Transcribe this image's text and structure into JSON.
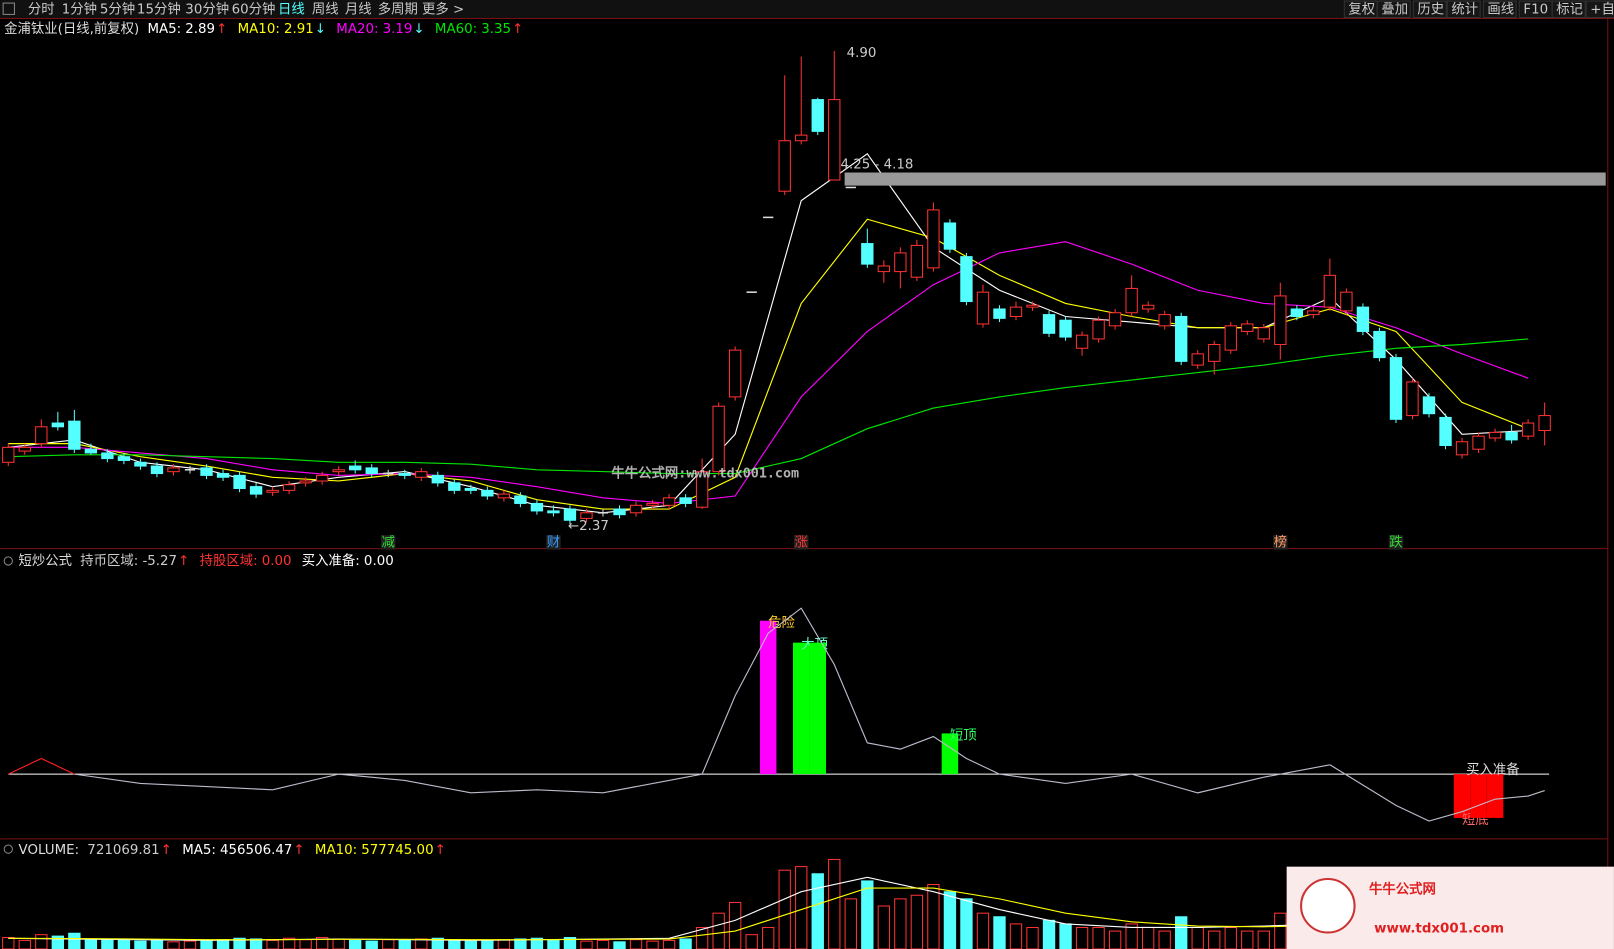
{
  "toolbar": {
    "left": [
      "分时",
      "1分钟",
      "5分钟",
      "15分钟",
      "30分钟",
      "60分钟",
      "日线",
      "周线",
      "月线",
      "多周期",
      "更多 >"
    ],
    "right": [
      "复权",
      "叠加",
      "历史",
      "统计",
      "画线",
      "F10",
      "标记",
      "+自选"
    ]
  },
  "watermark": "牛牛公式网:www.tdx001.com",
  "logo": {
    "title": "牛牛公式网",
    "url": "www.tdx001.com"
  },
  "chart_data": [
    {
      "type": "candlestick",
      "title": "金浦钛业(日线,前复权)",
      "legend": [
        {
          "name": "MA5:",
          "value": 2.89,
          "arrow": "↑",
          "color": "#ffffff"
        },
        {
          "name": "MA10:",
          "value": 2.91,
          "arrow": "↓",
          "color": "#ffff00"
        },
        {
          "name": "MA20:",
          "value": 3.19,
          "arrow": "↓",
          "color": "#ff00ff"
        },
        {
          "name": "MA60:",
          "value": 3.35,
          "arrow": "↑",
          "color": "#00e600"
        }
      ],
      "ylim": [
        2.31,
        4.98
      ],
      "up_color": "#ff3232",
      "down_color": "#54ffff",
      "candles": [
        [
          2.7,
          2.8,
          2.68,
          2.78
        ],
        [
          2.76,
          2.8,
          2.74,
          2.78
        ],
        [
          2.8,
          2.93,
          2.78,
          2.89
        ],
        [
          2.91,
          2.97,
          2.87,
          2.89
        ],
        [
          2.92,
          2.98,
          2.75,
          2.77
        ],
        [
          2.77,
          2.8,
          2.74,
          2.75
        ],
        [
          2.75,
          2.77,
          2.7,
          2.72
        ],
        [
          2.73,
          2.75,
          2.69,
          2.71
        ],
        [
          2.7,
          2.72,
          2.66,
          2.68
        ],
        [
          2.68,
          2.7,
          2.62,
          2.64
        ],
        [
          2.65,
          2.69,
          2.63,
          2.67
        ],
        [
          2.66,
          2.68,
          2.64,
          2.66
        ],
        [
          2.67,
          2.69,
          2.61,
          2.63
        ],
        [
          2.64,
          2.66,
          2.6,
          2.62
        ],
        [
          2.63,
          2.65,
          2.54,
          2.56
        ],
        [
          2.57,
          2.59,
          2.51,
          2.53
        ],
        [
          2.54,
          2.57,
          2.52,
          2.55
        ],
        [
          2.55,
          2.6,
          2.53,
          2.58
        ],
        [
          2.59,
          2.62,
          2.57,
          2.6
        ],
        [
          2.6,
          2.65,
          2.58,
          2.63
        ],
        [
          2.65,
          2.68,
          2.63,
          2.66
        ],
        [
          2.68,
          2.71,
          2.64,
          2.66
        ],
        [
          2.67,
          2.69,
          2.62,
          2.64
        ],
        [
          2.64,
          2.66,
          2.62,
          2.64
        ],
        [
          2.64,
          2.66,
          2.61,
          2.63
        ],
        [
          2.62,
          2.67,
          2.6,
          2.65
        ],
        [
          2.63,
          2.65,
          2.57,
          2.59
        ],
        [
          2.59,
          2.61,
          2.53,
          2.55
        ],
        [
          2.56,
          2.58,
          2.53,
          2.55
        ],
        [
          2.55,
          2.57,
          2.5,
          2.52
        ],
        [
          2.51,
          2.55,
          2.49,
          2.53
        ],
        [
          2.52,
          2.54,
          2.46,
          2.48
        ],
        [
          2.48,
          2.5,
          2.42,
          2.44
        ],
        [
          2.44,
          2.47,
          2.41,
          2.43
        ],
        [
          2.45,
          2.47,
          2.37,
          2.39
        ],
        [
          2.4,
          2.45,
          2.38,
          2.43
        ],
        [
          2.43,
          2.45,
          2.41,
          2.43
        ],
        [
          2.45,
          2.47,
          2.4,
          2.42
        ],
        [
          2.43,
          2.49,
          2.41,
          2.47
        ],
        [
          2.47,
          2.5,
          2.45,
          2.48
        ],
        [
          2.47,
          2.53,
          2.45,
          2.51
        ],
        [
          2.51,
          2.53,
          2.46,
          2.48
        ],
        [
          2.46,
          2.72,
          2.45,
          2.65
        ],
        [
          2.65,
          3.02,
          2.63,
          3.0
        ],
        [
          3.05,
          3.32,
          3.03,
          3.3
        ],
        [
          3.61,
          3.61,
          3.61,
          3.61
        ],
        [
          4.01,
          4.01,
          4.01,
          4.01
        ],
        [
          4.15,
          4.77,
          4.13,
          4.42
        ],
        [
          4.42,
          4.87,
          4.4,
          4.45
        ],
        [
          4.64,
          4.65,
          4.45,
          4.47
        ],
        [
          4.21,
          4.9,
          4.21,
          4.64
        ],
        [
          4.17,
          4.17,
          4.17,
          4.17
        ],
        [
          3.87,
          3.95,
          3.74,
          3.76
        ],
        [
          3.72,
          3.78,
          3.66,
          3.75
        ],
        [
          3.72,
          3.85,
          3.63,
          3.82
        ],
        [
          3.69,
          3.89,
          3.67,
          3.86
        ],
        [
          3.74,
          4.09,
          3.72,
          4.05
        ],
        [
          3.98,
          4.0,
          3.82,
          3.84
        ],
        [
          3.8,
          3.82,
          3.54,
          3.56
        ],
        [
          3.44,
          3.65,
          3.42,
          3.61
        ],
        [
          3.52,
          3.54,
          3.45,
          3.47
        ],
        [
          3.48,
          3.56,
          3.46,
          3.53
        ],
        [
          3.53,
          3.56,
          3.51,
          3.54
        ],
        [
          3.49,
          3.51,
          3.37,
          3.39
        ],
        [
          3.46,
          3.48,
          3.35,
          3.37
        ],
        [
          3.31,
          3.4,
          3.27,
          3.38
        ],
        [
          3.36,
          3.48,
          3.34,
          3.46
        ],
        [
          3.43,
          3.52,
          3.41,
          3.5
        ],
        [
          3.5,
          3.7,
          3.48,
          3.63
        ],
        [
          3.52,
          3.56,
          3.5,
          3.54
        ],
        [
          3.43,
          3.51,
          3.41,
          3.49
        ],
        [
          3.48,
          3.5,
          3.22,
          3.24
        ],
        [
          3.22,
          3.3,
          3.2,
          3.28
        ],
        [
          3.24,
          3.35,
          3.17,
          3.33
        ],
        [
          3.3,
          3.45,
          3.28,
          3.43
        ],
        [
          3.4,
          3.46,
          3.38,
          3.44
        ],
        [
          3.36,
          3.44,
          3.34,
          3.42
        ],
        [
          3.33,
          3.66,
          3.25,
          3.59
        ],
        [
          3.52,
          3.54,
          3.46,
          3.48
        ],
        [
          3.49,
          3.53,
          3.47,
          3.51
        ],
        [
          3.53,
          3.79,
          3.51,
          3.7
        ],
        [
          3.51,
          3.63,
          3.49,
          3.61
        ],
        [
          3.53,
          3.55,
          3.38,
          3.4
        ],
        [
          3.4,
          3.42,
          3.24,
          3.26
        ],
        [
          3.26,
          3.28,
          2.91,
          2.93
        ],
        [
          2.95,
          3.15,
          2.93,
          3.13
        ],
        [
          3.05,
          3.07,
          2.94,
          2.96
        ],
        [
          2.94,
          2.96,
          2.77,
          2.79
        ],
        [
          2.74,
          2.83,
          2.72,
          2.81
        ],
        [
          2.77,
          2.86,
          2.75,
          2.84
        ],
        [
          2.83,
          2.88,
          2.81,
          2.86
        ],
        [
          2.86,
          2.9,
          2.8,
          2.82
        ],
        [
          2.84,
          2.93,
          2.82,
          2.91
        ],
        [
          2.87,
          3.02,
          2.79,
          2.95
        ]
      ],
      "ma_x": [
        0,
        4,
        8,
        12,
        16,
        20,
        24,
        28,
        32,
        36,
        40,
        44,
        48,
        52,
        56,
        60,
        64,
        68,
        72,
        76,
        80,
        84,
        88,
        92
      ],
      "series": [
        {
          "name": "MA5",
          "color": "#ffffff",
          "values": [
            2.78,
            2.82,
            2.7,
            2.66,
            2.57,
            2.62,
            2.65,
            2.57,
            2.47,
            2.43,
            2.47,
            2.85,
            4.1,
            4.35,
            3.85,
            3.62,
            3.48,
            3.45,
            3.42,
            3.42,
            3.58,
            3.25,
            2.85,
            2.87
          ]
        },
        {
          "name": "MA10",
          "color": "#ffff00",
          "values": [
            2.8,
            2.8,
            2.73,
            2.68,
            2.62,
            2.6,
            2.64,
            2.6,
            2.5,
            2.45,
            2.45,
            2.62,
            3.55,
            4.0,
            3.9,
            3.7,
            3.55,
            3.48,
            3.42,
            3.42,
            3.52,
            3.4,
            3.02,
            2.88
          ]
        },
        {
          "name": "MA20",
          "color": "#ff00ff",
          "values": [
            2.78,
            2.78,
            2.75,
            2.72,
            2.66,
            2.63,
            2.64,
            2.62,
            2.57,
            2.51,
            2.48,
            2.52,
            3.05,
            3.4,
            3.65,
            3.82,
            3.88,
            3.76,
            3.62,
            3.55,
            3.53,
            3.42,
            3.28,
            3.15
          ]
        },
        {
          "name": "MA60",
          "color": "#00e600",
          "values": [
            2.73,
            2.74,
            2.74,
            2.73,
            2.72,
            2.7,
            2.7,
            2.69,
            2.66,
            2.65,
            2.64,
            2.64,
            2.72,
            2.88,
            2.99,
            3.05,
            3.1,
            3.14,
            3.18,
            3.22,
            3.27,
            3.31,
            3.33,
            3.36
          ]
        }
      ],
      "high_label": {
        "index": 50,
        "value": 4.9,
        "label": "4.90"
      },
      "low_label": {
        "index": 34,
        "value": 2.37,
        "label": "←2.37"
      },
      "gap": {
        "index": 51,
        "values": [
          4.25,
          4.18
        ],
        "label": "4.25 - 4.18"
      },
      "markers": [
        {
          "text": "减",
          "index": 23,
          "color": "#33dd33"
        },
        {
          "text": "财",
          "index": 33,
          "color": "#3399ff"
        },
        {
          "text": "涨",
          "index": 48,
          "color": "#ff3333"
        },
        {
          "text": "榜",
          "index": 77,
          "color": "#ff9966"
        },
        {
          "text": "跌",
          "index": 84,
          "color": "#33dd33"
        }
      ]
    },
    {
      "type": "indicator",
      "title": "短炒公式",
      "legend": [
        {
          "name": "持币区域:",
          "value": -5.27,
          "arrow": "↑",
          "color": "#cccccc"
        },
        {
          "name": "持股区域:",
          "value": 0,
          "label": "0.00",
          "color": "#ff3232"
        },
        {
          "name": "买入准备:",
          "value": 0,
          "label": "0.00",
          "color": "#ffffff"
        }
      ],
      "ylim": [
        -19.7,
        64.8
      ],
      "zero_line": 0,
      "x": [
        0,
        2,
        4,
        8,
        12,
        16,
        20,
        24,
        28,
        32,
        36,
        40,
        42,
        44,
        46,
        48,
        50,
        52,
        54,
        56,
        58,
        60,
        64,
        68,
        72,
        76,
        80,
        84,
        86,
        88,
        90,
        92,
        93
      ],
      "values": [
        0,
        5,
        0,
        -3,
        -4,
        -5,
        0,
        -2,
        -6,
        -5,
        -6,
        -2,
        0,
        25,
        45,
        53,
        35,
        10,
        8,
        12,
        5,
        0,
        -3,
        0,
        -6,
        -1,
        3,
        -10,
        -15,
        -12,
        -8,
        -7,
        -5.27
      ],
      "up_color": "#ff2020",
      "down_color": "#bbbbcc",
      "bars": [
        {
          "index": 46,
          "value": 49,
          "color": "#ff00ff",
          "label": "危险",
          "label_color": "#ffcc33"
        },
        {
          "index": 48,
          "value": 42,
          "color": "#00ff00",
          "label": "大顶",
          "label_color": "#66ffcc"
        },
        {
          "index": 49,
          "value": 42,
          "color": "#00ff00"
        },
        {
          "index": 57,
          "value": 13,
          "color": "#00ff00",
          "label": "短顶",
          "label_color": "#33ff66"
        },
        {
          "index": 88,
          "value": -14,
          "color": "#ff0000",
          "label": "短底",
          "label_color": "#ff6666"
        },
        {
          "index": 89,
          "value": -14,
          "color": "#ff0000"
        },
        {
          "index": 90,
          "value": -14,
          "color": "#ff0000"
        }
      ],
      "note": {
        "index": 88,
        "value": 0,
        "label": "买入准备"
      }
    },
    {
      "type": "volume",
      "title": "VOLUME:",
      "legend": [
        {
          "name": "",
          "value": 721069.81,
          "arrow": "↑",
          "color": "#cccccc"
        },
        {
          "name": "MA5:",
          "value": 456506.47,
          "arrow": "↑",
          "color": "#ffffff"
        },
        {
          "name": "MA10:",
          "value": 577745,
          "label": "577745.00",
          "arrow": "↑",
          "color": "#ffff00"
        }
      ],
      "ylim": [
        0,
        1250000
      ],
      "values": [
        160000,
        120000,
        200000,
        180000,
        220000,
        140000,
        130000,
        120000,
        110000,
        130000,
        100000,
        110000,
        120000,
        130000,
        150000,
        140000,
        120000,
        150000,
        130000,
        160000,
        140000,
        120000,
        110000,
        130000,
        120000,
        140000,
        150000,
        130000,
        110000,
        120000,
        130000,
        140000,
        150000,
        120000,
        160000,
        110000,
        120000,
        100000,
        130000,
        110000,
        120000,
        140000,
        300000,
        500000,
        650000,
        200000,
        300000,
        1100000,
        1150000,
        1050000,
        1250000,
        700000,
        950000,
        600000,
        700000,
        750000,
        900000,
        800000,
        700000,
        500000,
        450000,
        350000,
        300000,
        400000,
        350000,
        300000,
        300000,
        250000,
        350000,
        300000,
        250000,
        450000,
        300000,
        250000,
        300000,
        250000,
        250000,
        500000,
        300000,
        250000,
        450000,
        300000,
        350000,
        400000,
        700000,
        450000,
        400000,
        500000,
        350000,
        400000,
        350000,
        400000,
        450000,
        721069.81
      ],
      "ma_x": [
        0,
        4,
        8,
        12,
        16,
        20,
        24,
        28,
        32,
        36,
        40,
        44,
        48,
        52,
        56,
        60,
        64,
        68,
        72,
        76,
        80,
        84,
        88,
        92
      ],
      "series": [
        {
          "name": "MA5",
          "color": "#ffffff",
          "values": [
            150000,
            140000,
            130000,
            120000,
            130000,
            140000,
            130000,
            120000,
            130000,
            140000,
            150000,
            400000,
            800000,
            1000000,
            800000,
            550000,
            350000,
            300000,
            300000,
            320000,
            350000,
            480000,
            450000,
            420000
          ]
        },
        {
          "name": "MA10",
          "color": "#ffff00",
          "values": [
            150000,
            145000,
            140000,
            130000,
            130000,
            135000,
            135000,
            130000,
            130000,
            135000,
            140000,
            250000,
            550000,
            850000,
            850000,
            700000,
            500000,
            380000,
            320000,
            310000,
            330000,
            400000,
            450000,
            440000
          ]
        }
      ]
    }
  ]
}
